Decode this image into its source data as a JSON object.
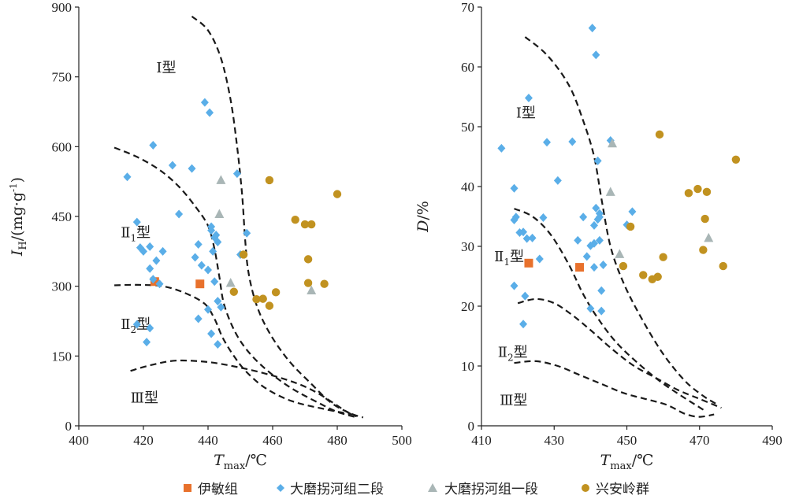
{
  "colors": {
    "伊敏组": "#e8712c",
    "大磨拐河组二段": "#5aaee8",
    "大磨拐河组一段": "#a9b6b6",
    "兴安岭群": "#c19220",
    "axis": "#222222",
    "boundary": "#1a1a1a"
  },
  "legend": {
    "position": "bottom-center",
    "items": [
      {
        "label": "伊敏组",
        "marker": "square"
      },
      {
        "label": "大磨拐河组二段",
        "marker": "diamond"
      },
      {
        "label": "大磨拐河组一段",
        "marker": "triangle"
      },
      {
        "label": "兴安岭群",
        "marker": "circle"
      }
    ]
  },
  "chart_data": [
    {
      "type": "scatter",
      "xlabel": {
        "main": "T",
        "sub": "max",
        "rest": "/℃"
      },
      "ylabel": {
        "main": "I",
        "sub": "H",
        "rest": "/(mg·g",
        "sup": "-1",
        "end": ")"
      },
      "xlim": [
        400,
        500
      ],
      "ylim": [
        0,
        900
      ],
      "xticks": [
        "400",
        "420",
        "440",
        "460",
        "480",
        "500"
      ],
      "yticks": [
        "0",
        "150",
        "300",
        "450",
        "600",
        "750",
        "900"
      ],
      "grid": false,
      "region_labels": [
        {
          "text": "Ⅰ型",
          "at": [
            424,
            760
          ]
        },
        {
          "text": "Ⅱ1型",
          "at": [
            413,
            405
          ],
          "main": "Ⅱ",
          "sub": "1",
          "rest": "型"
        },
        {
          "text": "Ⅱ2型",
          "at": [
            413,
            208
          ],
          "main": "Ⅱ",
          "sub": "2",
          "rest": "型"
        },
        {
          "text": "Ⅲ型",
          "at": [
            416,
            50
          ]
        }
      ],
      "boundaries": [
        [
          [
            435,
            880
          ],
          [
            440,
            850
          ],
          [
            444,
            790
          ],
          [
            447,
            700
          ],
          [
            449,
            600
          ],
          [
            450.5,
            500
          ],
          [
            451.5,
            400
          ],
          [
            452.5,
            330
          ],
          [
            455,
            260
          ],
          [
            459,
            200
          ],
          [
            465,
            140
          ],
          [
            472,
            90
          ],
          [
            478,
            50
          ],
          [
            484,
            27
          ],
          [
            488,
            18
          ]
        ],
        [
          [
            411,
            598
          ],
          [
            418,
            578
          ],
          [
            425,
            550
          ],
          [
            431,
            514
          ],
          [
            436,
            472
          ],
          [
            440,
            430
          ],
          [
            442,
            380
          ],
          [
            443.5,
            320
          ],
          [
            445,
            260
          ],
          [
            448.5,
            200
          ],
          [
            453,
            155
          ],
          [
            459,
            115
          ],
          [
            466,
            80
          ],
          [
            474,
            50
          ],
          [
            480,
            30
          ],
          [
            486,
            18
          ]
        ],
        [
          [
            411,
            302
          ],
          [
            418,
            303
          ],
          [
            426,
            300
          ],
          [
            433,
            285
          ],
          [
            439,
            262
          ],
          [
            442,
            230
          ],
          [
            444.5,
            190
          ],
          [
            448,
            150
          ],
          [
            452,
            115
          ],
          [
            458,
            80
          ],
          [
            466,
            53
          ],
          [
            476,
            36
          ],
          [
            485,
            24
          ]
        ],
        [
          [
            416,
            118
          ],
          [
            422,
            130
          ],
          [
            430,
            140
          ],
          [
            440,
            137
          ],
          [
            450,
            125
          ],
          [
            460,
            108
          ],
          [
            468,
            90
          ],
          [
            474,
            70
          ],
          [
            479,
            48
          ],
          [
            483,
            30
          ],
          [
            486,
            20
          ]
        ]
      ],
      "series": [
        {
          "name": "伊敏组",
          "marker": "square",
          "points": [
            [
              423.5,
              310
            ],
            [
              437.5,
              305
            ]
          ]
        },
        {
          "name": "大磨拐河组二段",
          "marker": "diamond",
          "points": [
            [
              415,
              535
            ],
            [
              423,
              603
            ],
            [
              429,
              560
            ],
            [
              431,
              455
            ],
            [
              435,
              553
            ],
            [
              439,
              695
            ],
            [
              440.5,
              673
            ],
            [
              418,
              438
            ],
            [
              419,
              383
            ],
            [
              420,
              375
            ],
            [
              422,
              385
            ],
            [
              422,
              338
            ],
            [
              424,
              355
            ],
            [
              426,
              375
            ],
            [
              425,
              305
            ],
            [
              423,
              315
            ],
            [
              436,
              362
            ],
            [
              438,
              345
            ],
            [
              440,
              335
            ],
            [
              437,
              390
            ],
            [
              441,
              420
            ],
            [
              441.5,
              375
            ],
            [
              442,
              405
            ],
            [
              442.5,
              410
            ],
            [
              443,
              395
            ],
            [
              441,
              428
            ],
            [
              443,
              268
            ],
            [
              442,
              310
            ],
            [
              440,
              250
            ],
            [
              444,
              255
            ],
            [
              418,
              218
            ],
            [
              421,
              180
            ],
            [
              422,
              210
            ],
            [
              441,
              198
            ],
            [
              443,
              175
            ],
            [
              449,
              542
            ],
            [
              450,
              368
            ],
            [
              452,
              414
            ],
            [
              437,
              230
            ]
          ]
        },
        {
          "name": "大磨拐河组一段",
          "marker": "triangle",
          "points": [
            [
              444,
              528
            ],
            [
              443.5,
              455
            ],
            [
              447,
              307
            ],
            [
              472,
              291
            ]
          ]
        },
        {
          "name": "兴安岭群",
          "marker": "circle",
          "points": [
            [
              459,
              528
            ],
            [
              467,
              443
            ],
            [
              470,
              433
            ],
            [
              472,
              433
            ],
            [
              480,
              498
            ],
            [
              471,
              358
            ],
            [
              471,
              307
            ],
            [
              476,
              305
            ],
            [
              451,
              368
            ],
            [
              448,
              288
            ],
            [
              455,
              272
            ],
            [
              457,
              273
            ],
            [
              459,
              258
            ],
            [
              461,
              287
            ]
          ]
        }
      ]
    },
    {
      "type": "scatter",
      "xlabel": {
        "main": "T",
        "sub": "max",
        "rest": "/℃"
      },
      "ylabel": {
        "main": "D",
        "rest": "/%"
      },
      "xlim": [
        410,
        490
      ],
      "ylim": [
        0,
        70
      ],
      "xticks": [
        "410",
        "430",
        "450",
        "470",
        "490"
      ],
      "yticks": [
        "0",
        "10",
        "20",
        "30",
        "40",
        "50",
        "60",
        "70"
      ],
      "grid": false,
      "region_labels": [
        {
          "text": "Ⅰ型",
          "at": [
            419.5,
            51.5
          ]
        },
        {
          "text": "Ⅱ1型",
          "at": [
            413.5,
            27.5
          ],
          "main": "Ⅱ",
          "sub": "1",
          "rest": "型"
        },
        {
          "text": "Ⅱ2型",
          "at": [
            414.5,
            11.5
          ],
          "main": "Ⅱ",
          "sub": "2",
          "rest": "型"
        },
        {
          "text": "Ⅲ型",
          "at": [
            415,
            3.5
          ]
        }
      ],
      "boundaries": [
        [
          [
            422,
            65
          ],
          [
            428,
            62
          ],
          [
            434,
            57
          ],
          [
            438,
            51
          ],
          [
            441,
            45
          ],
          [
            443,
            38
          ],
          [
            445.5,
            30
          ],
          [
            449,
            24
          ],
          [
            454,
            18
          ],
          [
            460,
            12
          ],
          [
            466,
            7.5
          ],
          [
            471,
            5
          ],
          [
            474.5,
            3.7
          ]
        ],
        [
          [
            419,
            36.3
          ],
          [
            424,
            35
          ],
          [
            429,
            32
          ],
          [
            434,
            27
          ],
          [
            438,
            22
          ],
          [
            442,
            18
          ],
          [
            447,
            14
          ],
          [
            453,
            10.5
          ],
          [
            459,
            7.5
          ],
          [
            465,
            5
          ],
          [
            471.5,
            2.5
          ]
        ],
        [
          [
            420,
            20.5
          ],
          [
            425,
            21.2
          ],
          [
            430,
            20.5
          ],
          [
            435,
            18.5
          ],
          [
            440,
            16
          ],
          [
            446,
            12.8
          ],
          [
            452,
            10
          ],
          [
            458,
            8
          ],
          [
            464,
            6
          ],
          [
            470,
            4.5
          ],
          [
            476,
            3
          ]
        ],
        [
          [
            419,
            10.5
          ],
          [
            425,
            10.8
          ],
          [
            431,
            10
          ],
          [
            437,
            8.5
          ],
          [
            443,
            7
          ],
          [
            449,
            5.5
          ],
          [
            455,
            4.5
          ],
          [
            461,
            3.5
          ],
          [
            466,
            2
          ],
          [
            470,
            1.5
          ],
          [
            474,
            1.9
          ]
        ]
      ],
      "series": [
        {
          "name": "伊敏组",
          "marker": "square",
          "points": [
            [
              423,
              27.2
            ],
            [
              437,
              26.5
            ]
          ]
        },
        {
          "name": "大磨拐河组二段",
          "marker": "diamond",
          "points": [
            [
              415.5,
              46.4
            ],
            [
              419,
              39.7
            ],
            [
              419,
              34.4
            ],
            [
              419.5,
              34.9
            ],
            [
              420.5,
              32.3
            ],
            [
              421.5,
              32.4
            ],
            [
              422.5,
              31.3
            ],
            [
              424,
              31.4
            ],
            [
              426,
              27.9
            ],
            [
              427,
              34.8
            ],
            [
              423,
              54.8
            ],
            [
              428,
              47.4
            ],
            [
              431,
              41
            ],
            [
              435,
              47.5
            ],
            [
              440.5,
              66.5
            ],
            [
              441.5,
              62
            ],
            [
              442,
              44.3
            ],
            [
              445.5,
              47.7
            ],
            [
              436.5,
              31
            ],
            [
              438,
              34.9
            ],
            [
              440,
              30.1
            ],
            [
              441,
              33.5
            ],
            [
              441.5,
              36.4
            ],
            [
              442,
              34.5
            ],
            [
              442.5,
              35.5
            ],
            [
              442.5,
              34.9
            ],
            [
              443.5,
              26.9
            ],
            [
              441,
              26.5
            ],
            [
              439,
              28.3
            ],
            [
              443,
              22.6
            ],
            [
              419,
              23.4
            ],
            [
              422,
              21.7
            ],
            [
              421.5,
              17
            ],
            [
              440,
              19.6
            ],
            [
              443,
              19.2
            ],
            [
              451.5,
              35.8
            ],
            [
              450,
              33.6
            ],
            [
              441,
              30.5
            ],
            [
              442.5,
              31
            ]
          ]
        },
        {
          "name": "大磨拐河组一段",
          "marker": "triangle",
          "points": [
            [
              446,
              47.2
            ],
            [
              445.5,
              39.1
            ],
            [
              448,
              28.7
            ],
            [
              472.5,
              31.4
            ]
          ]
        },
        {
          "name": "兴安岭群",
          "marker": "circle",
          "points": [
            [
              459,
              48.7
            ],
            [
              467,
              38.9
            ],
            [
              469.5,
              39.6
            ],
            [
              472,
              39.1
            ],
            [
              480,
              44.5
            ],
            [
              471.5,
              34.6
            ],
            [
              471,
              29.4
            ],
            [
              476.5,
              26.7
            ],
            [
              451,
              33.3
            ],
            [
              449,
              26.7
            ],
            [
              454.5,
              25.2
            ],
            [
              457,
              24.5
            ],
            [
              458.5,
              24.9
            ],
            [
              460,
              28.2
            ]
          ]
        }
      ]
    }
  ]
}
